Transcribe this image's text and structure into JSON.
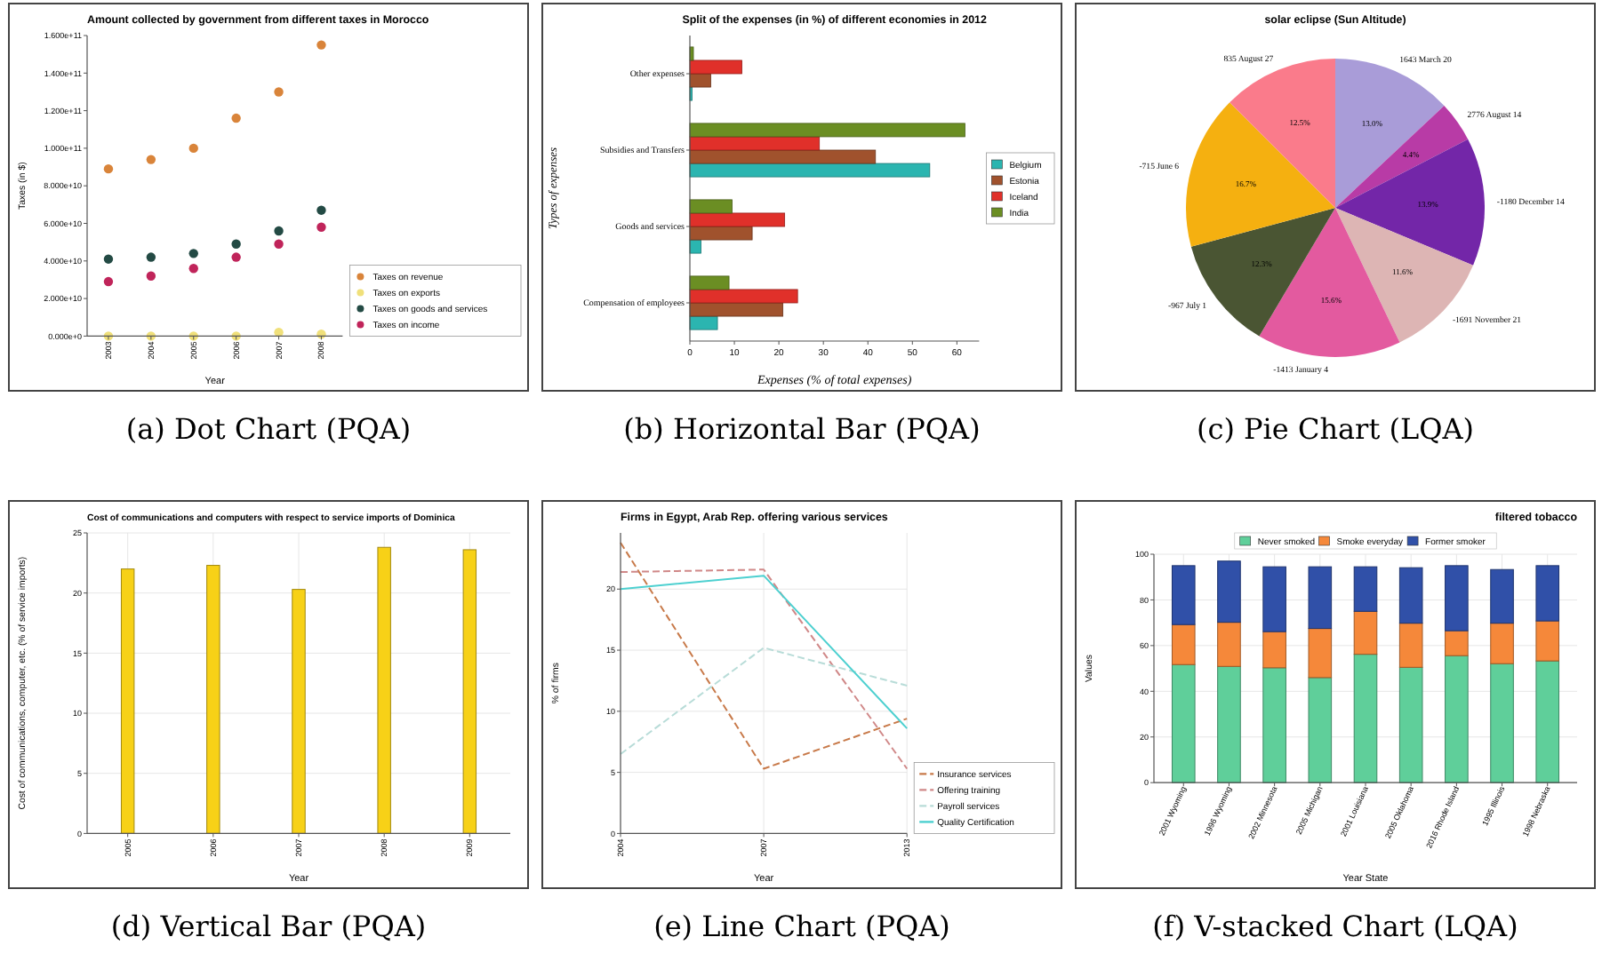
{
  "chart_data": [
    {
      "type": "scatter",
      "title": "Amount collected by government from different taxes in Morocco",
      "xlabel": "Year",
      "ylabel": "Taxes (in $)",
      "categories": [
        "2003",
        "2004",
        "2005",
        "2006",
        "2007",
        "2008"
      ],
      "marker": "circle",
      "legend": "bottom right",
      "ylim": [
        0,
        160000000000.0
      ],
      "yticks": [
        {
          "value": 0,
          "label": "0.000e+0"
        },
        {
          "value": 20000000000.0,
          "label": "2.000e+10"
        },
        {
          "value": 40000000000.0,
          "label": "4.000e+10"
        },
        {
          "value": 60000000000.0,
          "label": "6.000e+10"
        },
        {
          "value": 80000000000.0,
          "label": "8.000e+10"
        },
        {
          "value": 100000000000.0,
          "label": "1.000e+11"
        },
        {
          "value": 120000000000.0,
          "label": "1.200e+11"
        },
        {
          "value": 140000000000.0,
          "label": "1.400e+11"
        },
        {
          "value": 160000000000.0,
          "label": "1.600e+11"
        }
      ],
      "annotations": [
        "(a) Dot Chart (PQA)"
      ],
      "series": [
        {
          "name": "Taxes on revenue",
          "color": "#d9843a",
          "values": [
            89000000000.0,
            94000000000.0,
            100000000000.0,
            116000000000.0,
            130000000000.0,
            155000000000.0
          ]
        },
        {
          "name": "Taxes on exports",
          "color": "#f0e07a",
          "values": [
            0,
            0,
            0,
            0,
            2000000000.0,
            1000000000.0
          ]
        },
        {
          "name": "Taxes on goods and services",
          "color": "#234a44",
          "values": [
            41000000000.0,
            42000000000.0,
            44000000000.0,
            49000000000.0,
            56000000000.0,
            67000000000.0
          ]
        },
        {
          "name": "Taxes on income",
          "color": "#c0245a",
          "values": [
            29000000000.0,
            32000000000.0,
            36000000000.0,
            42000000000.0,
            49000000000.0,
            58000000000.0
          ]
        }
      ]
    },
    {
      "type": "bar",
      "orientation": "horizontal",
      "title": "Split of the expenses (in %) of different economies in 2012",
      "xlabel": "Expenses (% of total expenses)",
      "ylabel": "Types of expenses",
      "categories": [
        "Other expenses",
        "Subsidies and Transfers",
        "Goods and services",
        "Compensation of employees"
      ],
      "xlim": [
        0,
        65
      ],
      "xticks": [
        0,
        10,
        20,
        30,
        40,
        50,
        60
      ],
      "legend": "right",
      "annotations": [
        "(b) Horizontal Bar (PQA)"
      ],
      "series": [
        {
          "name": "Belgium",
          "color": "#2bb5b0",
          "values": [
            0.5,
            53.9,
            2.5,
            6.2
          ]
        },
        {
          "name": "Estonia",
          "color": "#a0522d",
          "values": [
            4.7,
            41.7,
            14,
            20.9
          ]
        },
        {
          "name": "Iceland",
          "color": "#e0302a",
          "values": [
            11.7,
            29.1,
            21.3,
            24.2
          ]
        },
        {
          "name": "India",
          "color": "#6b8e23",
          "values": [
            0.8,
            61.8,
            9.5,
            8.8
          ]
        }
      ]
    },
    {
      "type": "pie",
      "title": "solar eclipse (Sun Altitude)",
      "categories": [
        "1643 March 20",
        "2776 August 14",
        "-1180 December 14",
        "-1691 November 21",
        "-1413 January 4",
        "-967 July 1",
        "-715 June 6",
        "835 August 27"
      ],
      "values": [
        13.0,
        4.4,
        13.9,
        11.6,
        15.6,
        12.3,
        16.7,
        12.5
      ],
      "value_labels": [
        "13.0%",
        "4.4%",
        "13.9%",
        "11.6%",
        "15.6%",
        "12.3%",
        "16.7%",
        "12.5%"
      ],
      "colors": [
        "#a99cd8",
        "#b83ba6",
        "#7326a8",
        "#ddb5b4",
        "#e35a9f",
        "#4a5533",
        "#f5b010",
        "#fa7b8b"
      ],
      "annotations": [
        "(c) Pie Chart (LQA)"
      ]
    },
    {
      "type": "bar",
      "title": "Cost of communications and computers with respect to service imports of Dominica",
      "xlabel": "Year",
      "ylabel": "Cost of communications, computer, etc. (% of service imports)",
      "categories": [
        "2005",
        "2006",
        "2007",
        "2008",
        "2009"
      ],
      "values": [
        22.0,
        22.3,
        20.3,
        23.8,
        23.6
      ],
      "color": "#f7d117",
      "ylim": [
        0,
        25
      ],
      "yticks": [
        0,
        5,
        10,
        15,
        20,
        25
      ],
      "grid": true,
      "annotations": [
        "(d) Vertical Bar (PQA)"
      ]
    },
    {
      "type": "line",
      "title": "Firms in Egypt, Arab Rep. offering various services",
      "xlabel": "Year",
      "ylabel": "% of firms",
      "categories": [
        "2004",
        "2007",
        "2013"
      ],
      "ylim": [
        0,
        24.6
      ],
      "yticks": [
        0,
        5,
        10,
        15,
        20
      ],
      "grid": true,
      "legend": "bottom right",
      "annotations": [
        "(e) Line Chart (PQA)"
      ],
      "series": [
        {
          "name": "Insurance services",
          "color": "#c87a4a",
          "line_style": "dashed",
          "values": [
            23.8,
            5.3,
            9.4
          ]
        },
        {
          "name": "Offering training",
          "color": "#d08888",
          "line_style": "dashed",
          "values": [
            21.4,
            21.6,
            5.3
          ]
        },
        {
          "name": "Payroll services",
          "color": "#b8dcd8",
          "line_style": "dashed",
          "values": [
            6.5,
            15.2,
            12.1
          ]
        },
        {
          "name": "Quality Certification",
          "color": "#4dd0d0",
          "line_style": "solid",
          "values": [
            20.0,
            21.1,
            8.6
          ]
        }
      ]
    },
    {
      "type": "bar",
      "stacked": true,
      "title": "filtered tobacco",
      "xlabel": "Year State",
      "ylabel": "Values",
      "categories": [
        "2001 Wyoming",
        "1996 Wyoming",
        "2002 Minnesota",
        "2005 Michigan",
        "2001 Louisiana",
        "2005 Oklahoma",
        "2016 Rhode Island",
        "1995 Illinois",
        "1998 Nebraska"
      ],
      "ylim": [
        0,
        100
      ],
      "yticks": [
        0,
        20,
        40,
        60,
        80,
        100
      ],
      "grid": true,
      "legend": "top",
      "annotations": [
        "(f) V-stacked Chart (LQA)"
      ],
      "series": [
        {
          "name": "Never smoked",
          "color": "#5fcf9a",
          "values": [
            51.7,
            50.9,
            50.3,
            46.0,
            56.2,
            50.5,
            55.6,
            52.1,
            53.3
          ]
        },
        {
          "name": "Smoke everyday",
          "color": "#f5883a",
          "values": [
            17.5,
            19.3,
            15.8,
            21.5,
            18.8,
            19.3,
            10.9,
            17.7,
            17.5
          ]
        },
        {
          "name": "Former smoker",
          "color": "#3050a8",
          "values": [
            25.8,
            26.8,
            28.4,
            27.0,
            19.5,
            24.3,
            28.5,
            23.5,
            24.2
          ]
        }
      ]
    }
  ]
}
